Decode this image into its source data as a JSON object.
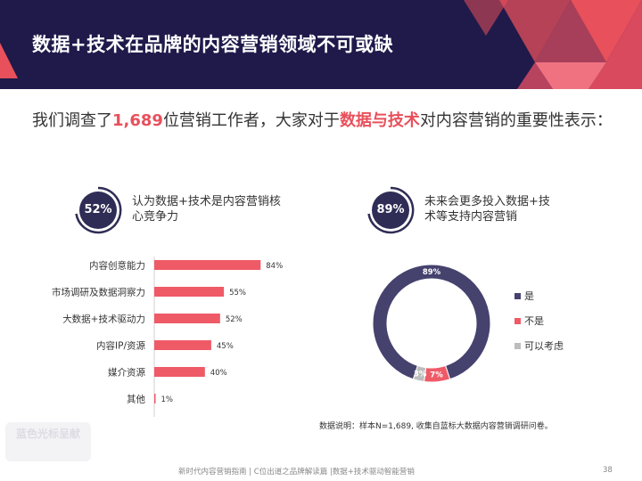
{
  "header": {
    "title": "数据+技术在品牌的内容营销领域不可或缺",
    "colors": {
      "navy": "#1f1a4a",
      "accent": "#e8505b"
    }
  },
  "intro": {
    "prefix": "我们调查了",
    "count": "1,689",
    "middle": "位营销工作者，大家对于",
    "highlight": "数据与技术",
    "suffix": "对内容营销的重要性表示："
  },
  "stats": [
    {
      "value": "52%",
      "text": "认为数据+技术是内容营销核心竞争力",
      "ring_color": "#2f2d55"
    },
    {
      "value": "89%",
      "text": "未来会更多投入数据+技术等支持内容营销",
      "ring_color": "#2f2d55"
    }
  ],
  "chart_data": [
    {
      "type": "bar",
      "orientation": "horizontal",
      "categories": [
        "内容创意能力",
        "市场调研及数据洞察力",
        "大数据+技术驱动力",
        "内容IP/资源",
        "媒介资源",
        "其他"
      ],
      "values": [
        84,
        55,
        52,
        45,
        40,
        1
      ],
      "value_labels": [
        "84%",
        "55%",
        "52%",
        "45%",
        "40%",
        "1%"
      ],
      "color": "#ef5a67",
      "xlim": [
        0,
        100
      ]
    },
    {
      "type": "pie",
      "donut": true,
      "labels": [
        "是",
        "不是",
        "可以考虑"
      ],
      "values": [
        89,
        7,
        3
      ],
      "value_labels": [
        "89%",
        "7%",
        "3%"
      ],
      "colors": [
        "#45426e",
        "#ef5a67",
        "#bdbdbd"
      ],
      "legend": "right"
    }
  ],
  "footnote": "数据说明：样本N=1,689, 收集自蓝标大数据内容营销调研问卷。",
  "watermark": "蓝色光标呈献",
  "footer": {
    "text": "新时代内容营销指南 | C位出道之品牌解读篇 |数据+技术驱动智能营销",
    "page": "38"
  }
}
